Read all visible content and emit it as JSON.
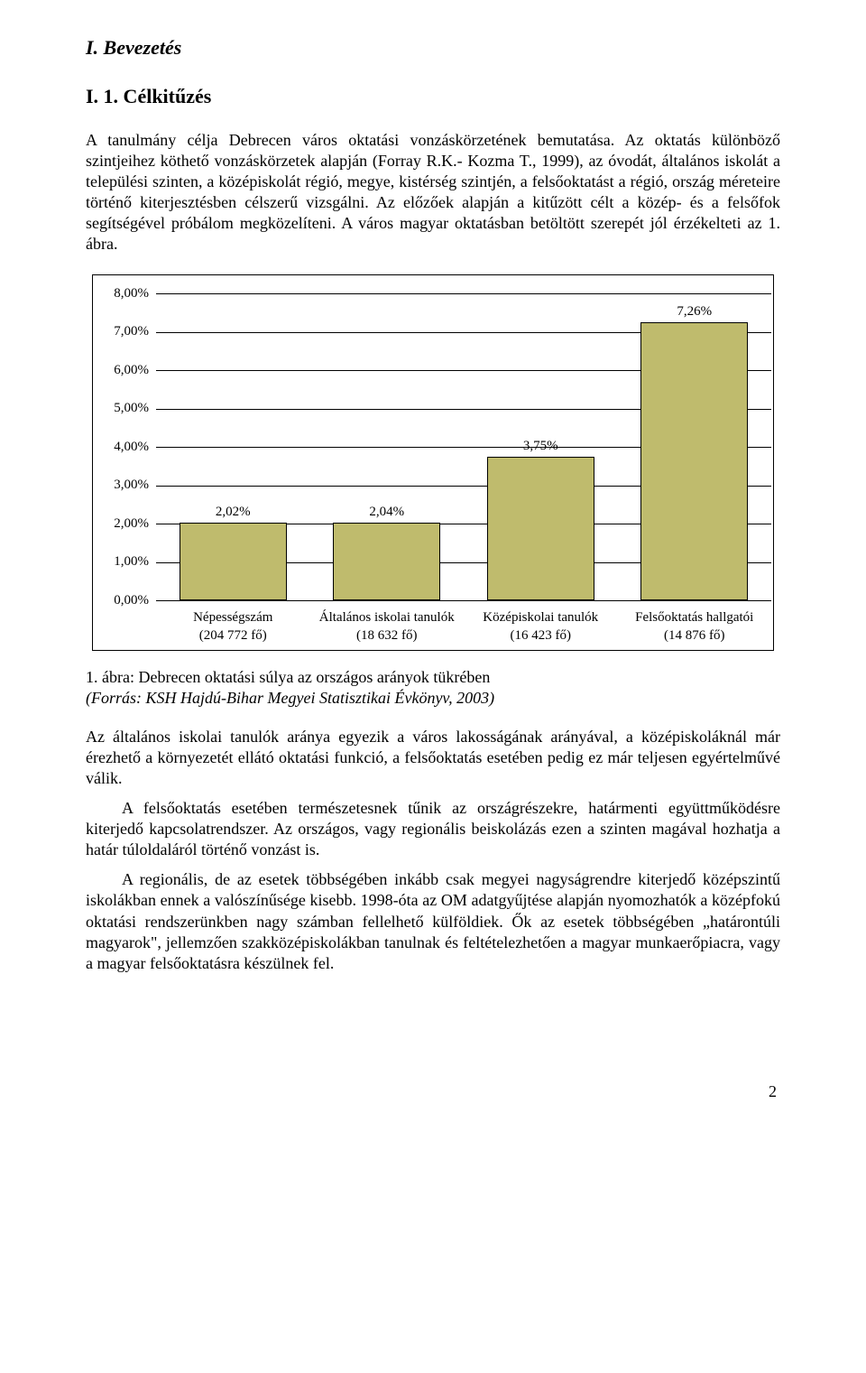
{
  "heading1": "I. Bevezetés",
  "heading2": "I. 1. Célkitűzés",
  "paragraph1": "A tanulmány célja Debrecen város oktatási vonzáskörzetének bemutatása. Az oktatás különböző szintjeihez köthető vonzáskörzetek alapján (Forray R.K.- Kozma T., 1999), az óvodát, általános iskolát a települési szinten, a középiskolát régió, megye, kistérség szintjén, a felsőoktatást a régió, ország méreteire történő kiterjesztésben célszerű vizsgálni. Az előzőek alapján a kitűzött célt a közép- és a felsőfok segítségével próbálom megközelíteni. A város magyar oktatásban betöltött szerepét jól érzékelteti az 1. ábra.",
  "chart": {
    "type": "bar",
    "y_ticks": [
      "8,00%",
      "7,00%",
      "6,00%",
      "5,00%",
      "4,00%",
      "3,00%",
      "2,00%",
      "1,00%",
      "0,00%"
    ],
    "y_max": 8.0,
    "tick_fontsize": 15,
    "bar_color": "#bfbb6d",
    "bar_border": "#000000",
    "grid_color": "#000000",
    "background_color": "#ffffff",
    "bar_width_pct": 70,
    "bars": [
      {
        "label": "2,02%",
        "value": 2.02,
        "x_line1": "Népességszám",
        "x_line2": "(204 772 fő)"
      },
      {
        "label": "2,04%",
        "value": 2.04,
        "x_line1": "Általános iskolai tanulók",
        "x_line2": "(18 632 fő)"
      },
      {
        "label": "3,75%",
        "value": 3.75,
        "x_line1": "Középiskolai tanulók",
        "x_line2": "(16 423 fő)"
      },
      {
        "label": "7,26%",
        "value": 7.26,
        "x_line1": "Felsőoktatás hallgatói",
        "x_line2": "(14 876 fő)"
      }
    ]
  },
  "caption_plain": "1. ábra: Debrecen oktatási súlya az országos arányok tükrében",
  "caption_italic": "(Forrás: KSH Hajdú-Bihar Megyei Statisztikai Évkönyv, 2003)",
  "paragraph2": "Az általános iskolai tanulók aránya egyezik a város lakosságának arányával, a középiskoláknál már érezhető a környezetét ellátó oktatási funkció, a felsőoktatás esetében pedig ez már teljesen egyértelművé válik.",
  "paragraph3": "A felsőoktatás esetében természetesnek tűnik az országrészekre, határmenti együttműködésre kiterjedő kapcsolatrendszer. Az országos, vagy regionális beiskolázás ezen a szinten magával hozhatja a határ túloldaláról történő vonzást is.",
  "paragraph4": "A regionális, de az esetek többségében inkább csak megyei nagyságrendre kiterjedő középszintű iskolákban ennek a valószínűsége kisebb. 1998-óta az OM adatgyűjtése alapján nyomozhatók a középfokú oktatási rendszerünkben nagy számban fellelhető külföldiek. Ők az esetek többségében „határontúli magyarok\", jellemzően szakközépiskolákban tanulnak és feltételezhetően a magyar munkaerőpiacra, vagy a magyar felsőoktatásra készülnek fel.",
  "page_number": "2"
}
